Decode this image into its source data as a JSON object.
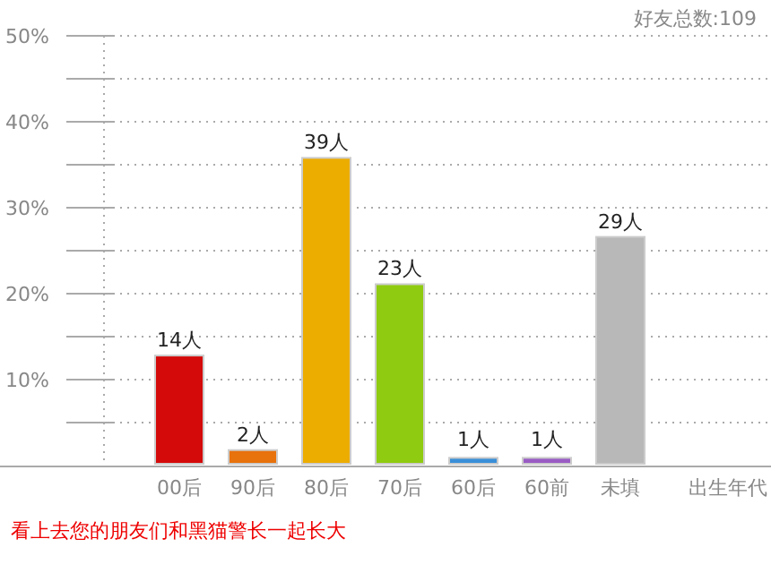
{
  "chart_data": {
    "type": "bar",
    "xlabel": "出生年代",
    "categories": [
      "00后",
      "90后",
      "80后",
      "70后",
      "60后",
      "60前",
      "未填"
    ],
    "values": [
      12.8,
      1.8,
      35.8,
      21.1,
      0.9,
      0.9,
      26.6
    ],
    "colors": [
      "#d40a0a",
      "#e8720c",
      "#ecac00",
      "#8fcb10",
      "#3a8fd8",
      "#9a5bc4",
      "#b8b8b8"
    ],
    "ylim": [
      0,
      50
    ],
    "yticks": [
      {
        "value": 5,
        "label": null
      },
      {
        "value": 10,
        "label": "10%"
      },
      {
        "value": 15,
        "label": null
      },
      {
        "value": 20,
        "label": "20%"
      },
      {
        "value": 25,
        "label": null
      },
      {
        "value": 30,
        "label": "30%"
      },
      {
        "value": 35,
        "label": null
      },
      {
        "value": 40,
        "label": "40%"
      },
      {
        "value": 45,
        "label": null
      },
      {
        "value": 50,
        "label": "50%"
      }
    ],
    "grid": "y",
    "annotations": [
      "好友总数:109",
      "看上去您的朋友们和黑猫警长一起长大",
      {
        "text": "14人",
        "x": "00后",
        "y": 12.8
      },
      {
        "text": "2人",
        "x": "90后",
        "y": 1.8
      },
      {
        "text": "39人",
        "x": "80后",
        "y": 35.8
      },
      {
        "text": "23人",
        "x": "70后",
        "y": 21.1
      },
      {
        "text": "1人",
        "x": "60后",
        "y": 0.9
      },
      {
        "text": "1人",
        "x": "60前",
        "y": 0.9
      },
      {
        "text": "29人",
        "x": "未填",
        "y": 26.6
      }
    ]
  }
}
